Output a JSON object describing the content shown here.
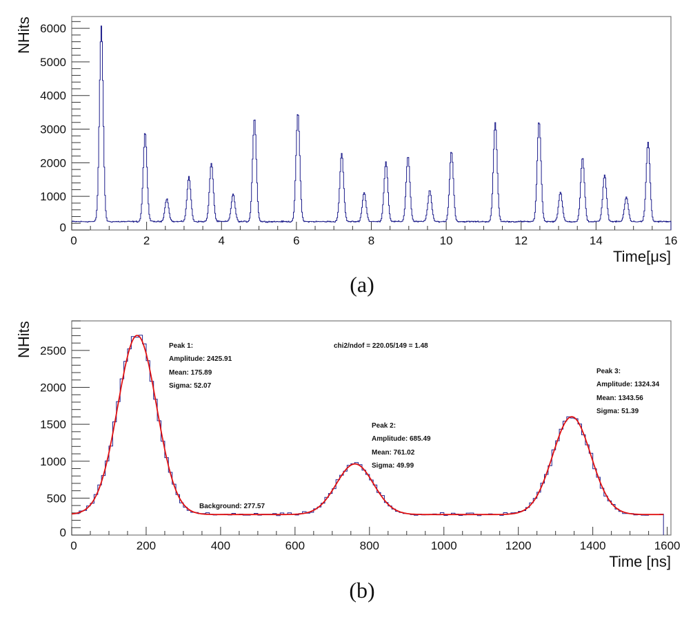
{
  "chart_data": [
    {
      "type": "line",
      "panel_label": "(a)",
      "xlabel": "Time[μs]",
      "ylabel": "NHits",
      "xlim": [
        0,
        16
      ],
      "ylim": [
        0,
        6350
      ],
      "xticks": [
        0,
        2,
        4,
        6,
        8,
        10,
        12,
        14,
        16
      ],
      "yticks": [
        0,
        1000,
        2000,
        3000,
        4000,
        5000,
        6000
      ],
      "grid": false,
      "series_color": "#1c1c8a",
      "baseline": 250,
      "peaks": [
        {
          "x": 0.78,
          "y": 6050
        },
        {
          "x": 1.95,
          "y": 2900
        },
        {
          "x": 2.53,
          "y": 930
        },
        {
          "x": 3.12,
          "y": 1580
        },
        {
          "x": 3.72,
          "y": 2000
        },
        {
          "x": 4.3,
          "y": 1070
        },
        {
          "x": 4.87,
          "y": 3330
        },
        {
          "x": 6.03,
          "y": 3480
        },
        {
          "x": 7.2,
          "y": 2280
        },
        {
          "x": 7.8,
          "y": 1120
        },
        {
          "x": 8.38,
          "y": 2030
        },
        {
          "x": 8.97,
          "y": 2200
        },
        {
          "x": 9.55,
          "y": 1180
        },
        {
          "x": 10.13,
          "y": 2350
        },
        {
          "x": 11.3,
          "y": 3200
        },
        {
          "x": 12.47,
          "y": 3230
        },
        {
          "x": 13.04,
          "y": 1120
        },
        {
          "x": 13.63,
          "y": 2150
        },
        {
          "x": 14.22,
          "y": 1650
        },
        {
          "x": 14.8,
          "y": 980
        },
        {
          "x": 15.38,
          "y": 2620
        }
      ],
      "peak_sigma": 0.05
    },
    {
      "type": "line",
      "panel_label": "(b)",
      "xlabel": "Time [ns]",
      "ylabel": "NHits",
      "xlim": [
        0,
        1610
      ],
      "ylim": [
        0,
        2900
      ],
      "xticks": [
        0,
        200,
        400,
        600,
        800,
        1000,
        1200,
        1400,
        1600
      ],
      "yticks": [
        0,
        500,
        1000,
        1500,
        2000,
        2500
      ],
      "grid": false,
      "histogram_color": "#1c1c8a",
      "fit_color": "#e01010",
      "histogram_range": [
        0,
        1590
      ],
      "fit": {
        "background": 277.57,
        "peaks": [
          {
            "amplitude": 2425.91,
            "mean": 175.89,
            "sigma": 52.07
          },
          {
            "amplitude": 685.49,
            "mean": 761.02,
            "sigma": 49.99
          },
          {
            "amplitude": 1324.34,
            "mean": 1343.56,
            "sigma": 51.39
          }
        ]
      },
      "annotations": {
        "chi2": "chi2/ndof = 220.05/149 = 1.48",
        "background": "Background: 277.57",
        "peak1": [
          "Peak 1:",
          "Amplitude: 2425.91",
          "Mean: 175.89",
          "Sigma: 52.07"
        ],
        "peak2": [
          "Peak 2:",
          "Amplitude: 685.49",
          "Mean: 761.02",
          "Sigma: 49.99"
        ],
        "peak3": [
          "Peak 3:",
          "Amplitude: 1324.34",
          "Mean: 1343.56",
          "Sigma: 51.39"
        ]
      }
    }
  ]
}
